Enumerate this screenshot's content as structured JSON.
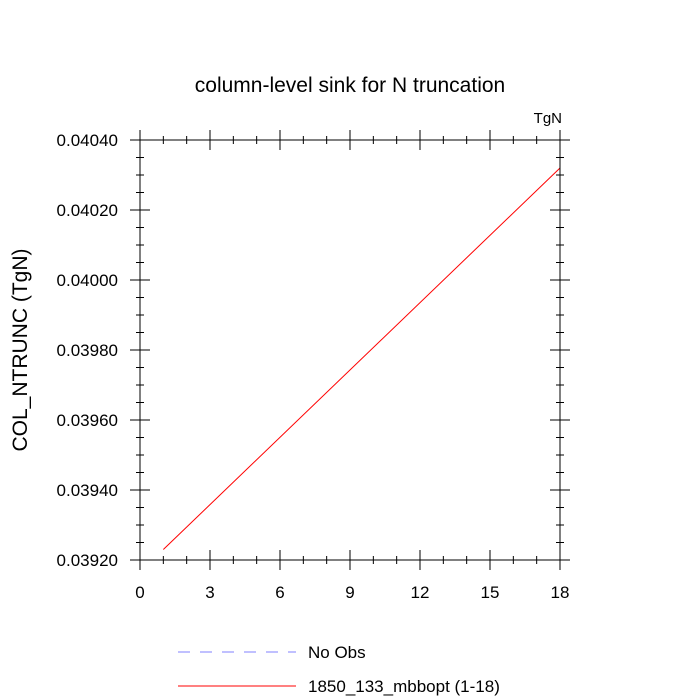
{
  "chart_data": {
    "type": "line",
    "title": "column-level sink for N truncation",
    "units_label": "TgN",
    "ylabel": "COL_NTRUNC  (TgN)",
    "xlabel": "",
    "xlim": [
      0,
      18
    ],
    "ylim": [
      0.0392,
      0.0404
    ],
    "x_ticks": [
      0,
      3,
      6,
      9,
      12,
      15,
      18
    ],
    "x_tick_labels": [
      "0",
      "3",
      "6",
      "9",
      "12",
      "15",
      "18"
    ],
    "y_ticks": [
      0.0392,
      0.0394,
      0.0396,
      0.0398,
      0.04,
      0.0402,
      0.0404
    ],
    "y_tick_labels": [
      "0.03920",
      "0.03940",
      "0.03960",
      "0.03980",
      "0.04000",
      "0.04020",
      "0.04040"
    ],
    "grid": false,
    "legend_position": "bottom",
    "series": [
      {
        "name": "No Obs",
        "color": "#8080ff",
        "dash": "dashed",
        "x": [],
        "y": []
      },
      {
        "name": "1850_133_mbbopt (1-18)",
        "color": "#ff0000",
        "dash": "solid",
        "x": [
          1,
          18
        ],
        "y": [
          0.03923,
          0.04032
        ]
      }
    ]
  }
}
